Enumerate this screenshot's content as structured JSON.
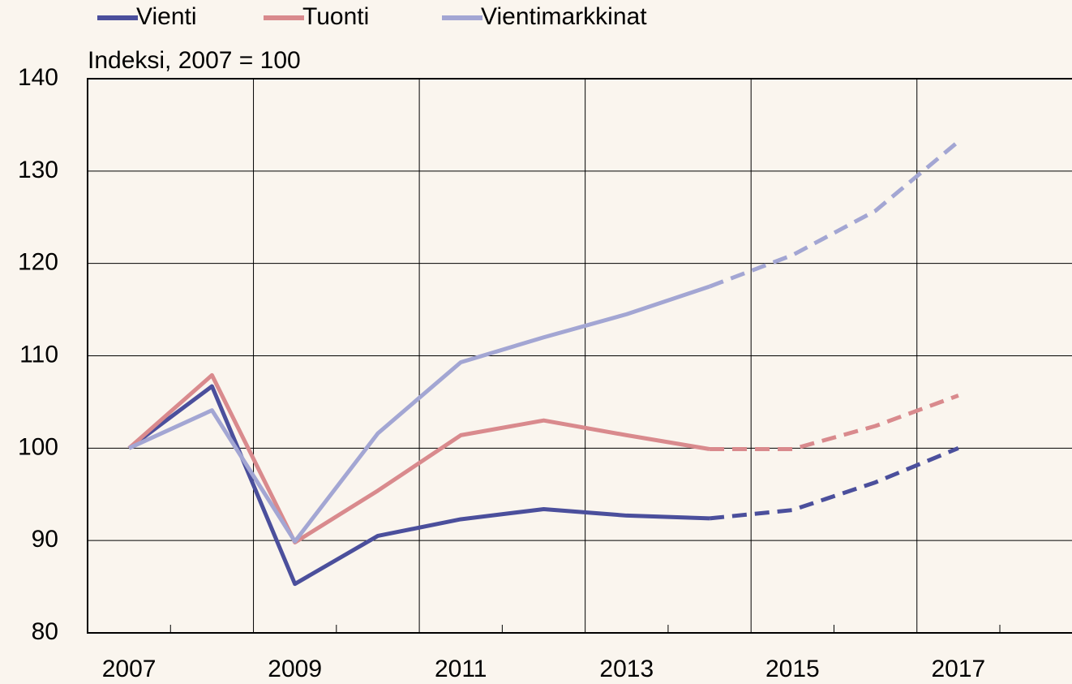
{
  "chart_data": {
    "type": "line",
    "subtitle": "Indeksi, 2007 = 100",
    "x": [
      2007,
      2008,
      2009,
      2010,
      2011,
      2012,
      2013,
      2014,
      2015,
      2016,
      2017
    ],
    "series": [
      {
        "name": "Vienti",
        "color": "#4b4f9c",
        "values": [
          100,
          106.7,
          85.3,
          90.5,
          92.3,
          93.4,
          92.7,
          92.4,
          93.3,
          96.3,
          100.0
        ]
      },
      {
        "name": "Tuonti",
        "color": "#d98a8d",
        "values": [
          100,
          107.9,
          89.8,
          95.4,
          101.4,
          103.0,
          101.4,
          99.9,
          99.9,
          102.4,
          105.7
        ]
      },
      {
        "name": "Vientimarkkinat",
        "color": "#a3a6d3",
        "values": [
          100,
          104.1,
          89.9,
          101.6,
          109.3,
          112.0,
          114.5,
          117.5,
          120.9,
          125.7,
          133.2
        ]
      }
    ],
    "dashed_from_x": 2014,
    "xlim": [
      2006.5,
      2018.37
    ],
    "xticks": [
      2007,
      2009,
      2011,
      2013,
      2015,
      2017
    ],
    "xminorticks": [
      2007.5,
      2008.5,
      2009.5,
      2010.5,
      2011.5,
      2012.5,
      2013.5,
      2014.5,
      2015.5,
      2016.5,
      2017.5
    ],
    "ylim": [
      80,
      140
    ],
    "yticks": [
      80,
      90,
      100,
      110,
      120,
      130,
      140
    ],
    "grid": true,
    "legend": "top"
  }
}
